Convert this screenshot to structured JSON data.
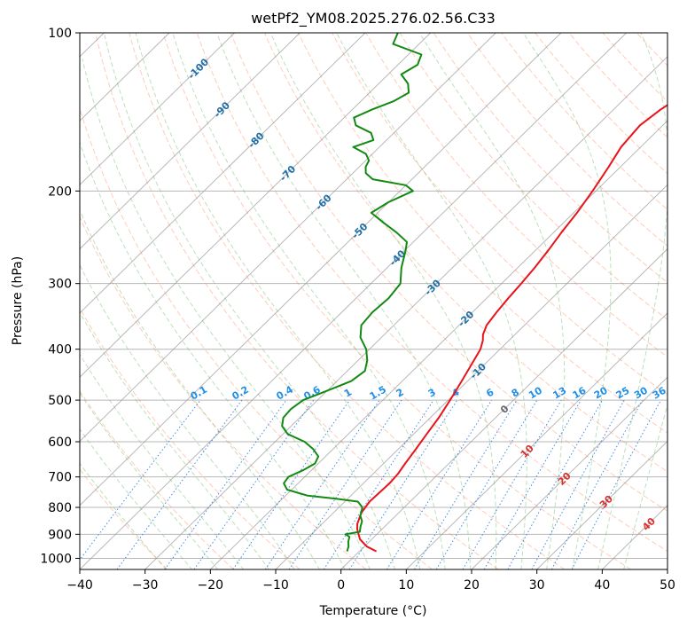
{
  "chart_data": {
    "type": "line",
    "title": "wetPf2_YM08.2025.276.02.56.C33",
    "xlabel": "Temperature (°C)",
    "ylabel": "Pressure (hPa)",
    "xlim": [
      -40,
      50
    ],
    "ylim": [
      1050,
      100
    ],
    "y_scale": "log",
    "grid": true,
    "x_ticks": [
      -40,
      -30,
      -20,
      -10,
      0,
      10,
      20,
      30,
      40,
      50
    ],
    "x_tick_labels": [
      "−40",
      "−30",
      "−20",
      "−10",
      "0",
      "10",
      "20",
      "30",
      "40",
      "50"
    ],
    "y_ticks": [
      100,
      200,
      300,
      400,
      500,
      600,
      700,
      800,
      900,
      1000
    ],
    "y_tick_labels": [
      "100",
      "200",
      "300",
      "400",
      "500",
      "600",
      "700",
      "800",
      "900",
      "1000"
    ],
    "skew_factor_degC_per_lnp": 35.6,
    "isotherm_labels": [
      {
        "t": -100,
        "text": "-100"
      },
      {
        "t": -90,
        "text": "-90"
      },
      {
        "t": -80,
        "text": "-80"
      },
      {
        "t": -70,
        "text": "-70"
      },
      {
        "t": -60,
        "text": "-60"
      },
      {
        "t": -50,
        "text": "-50"
      },
      {
        "t": -40,
        "text": "-40"
      },
      {
        "t": -30,
        "text": "-30"
      },
      {
        "t": -20,
        "text": "-20"
      },
      {
        "t": -10,
        "text": "-10"
      },
      {
        "t": 0,
        "text": "0"
      },
      {
        "t": 10,
        "text": "10"
      },
      {
        "t": 20,
        "text": "20"
      },
      {
        "t": 30,
        "text": "30"
      },
      {
        "t": 40,
        "text": "40"
      }
    ],
    "mixing_ratio_labels": [
      "0.1",
      "0.2",
      "0.4",
      "0.6",
      "1",
      "1.5",
      "2",
      "3",
      "4",
      "6",
      "8",
      "10",
      "13",
      "16",
      "20",
      "25",
      "30",
      "36"
    ],
    "mixing_ratio_values": [
      0.1,
      0.2,
      0.4,
      0.6,
      1,
      1.5,
      2,
      3,
      4,
      6,
      8,
      10,
      13,
      16,
      20,
      25,
      30,
      36
    ],
    "series": [
      {
        "role": "temperature",
        "color": "#e8131b",
        "p": [
          970,
          950,
          920,
          900,
          880,
          860,
          820,
          780,
          750,
          720,
          690,
          660,
          620,
          580,
          540,
          500,
          460,
          430,
          400,
          385,
          375,
          360,
          340,
          320,
          300,
          280,
          260,
          240,
          220,
          200,
          180,
          165,
          150,
          140,
          130,
          120,
          110,
          100
        ],
        "t": [
          2.6,
          0.4,
          -1.8,
          -2.8,
          -3.8,
          -4.6,
          -5.7,
          -6.2,
          -6.1,
          -6.0,
          -6.2,
          -6.7,
          -7.3,
          -8.0,
          -8.7,
          -9.7,
          -10.9,
          -11.9,
          -13.0,
          -14.0,
          -14.9,
          -15.8,
          -16.3,
          -16.7,
          -17.0,
          -17.4,
          -18.0,
          -18.8,
          -19.5,
          -20.5,
          -21.8,
          -23.0,
          -23.5,
          -22.8,
          -21.5,
          -21.0,
          -20.5,
          -20.0
        ]
      },
      {
        "role": "dewpoint",
        "color": "#128a12",
        "p": [
          970,
          950,
          930,
          910,
          900,
          890,
          870,
          850,
          830,
          800,
          780,
          770,
          760,
          740,
          720,
          700,
          680,
          660,
          640,
          620,
          600,
          580,
          560,
          540,
          520,
          500,
          480,
          460,
          440,
          420,
          400,
          380,
          360,
          340,
          320,
          300,
          280,
          260,
          250,
          240,
          230,
          220,
          210,
          200,
          195,
          190,
          185,
          180,
          175,
          170,
          165,
          160,
          155,
          150,
          145,
          140,
          135,
          130,
          125,
          120,
          115,
          110,
          105,
          100
        ],
        "t": [
          -1.9,
          -2.4,
          -3.2,
          -3.8,
          -4.8,
          -3.0,
          -3.7,
          -4.3,
          -5.4,
          -6.4,
          -8.0,
          -11.8,
          -16.6,
          -20.7,
          -22.2,
          -22.5,
          -21.3,
          -20.5,
          -21.1,
          -23.0,
          -25.5,
          -29.3,
          -31.4,
          -32.5,
          -32.7,
          -32.2,
          -30.0,
          -27.8,
          -27.3,
          -28.6,
          -30.5,
          -33.2,
          -35.0,
          -35.3,
          -35.0,
          -35.5,
          -37.8,
          -39.8,
          -41.0,
          -44.0,
          -47.5,
          -51.0,
          -50.0,
          -48.0,
          -50.0,
          -56.0,
          -58.0,
          -59.0,
          -59.5,
          -61.0,
          -64.0,
          -62.0,
          -63.5,
          -67.0,
          -68.5,
          -67.0,
          -65.0,
          -64.0,
          -65.5,
          -68.0,
          -67.0,
          -68.0,
          -74.0,
          -75.0
        ]
      }
    ]
  }
}
